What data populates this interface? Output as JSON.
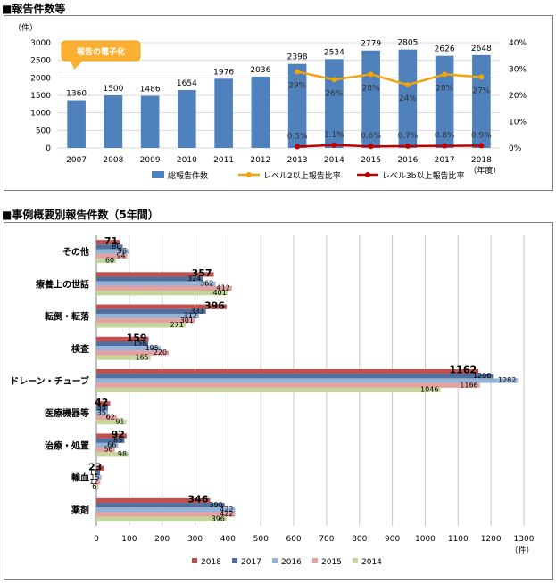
{
  "section1": {
    "title": "■報告件数等"
  },
  "section2": {
    "title": "■事例概要別報告件数（5年間）"
  },
  "chart_data": [
    {
      "type": "bar",
      "categories": [
        "2007",
        "2008",
        "2009",
        "2010",
        "2011",
        "2012",
        "2013",
        "2014",
        "2015",
        "2016",
        "2017",
        "2018"
      ],
      "x_unit": "（年度）",
      "y_unit": "（件）",
      "ylim": [
        0,
        3000
      ],
      "yticks": [
        0,
        500,
        1000,
        1500,
        2000,
        2500,
        3000
      ],
      "y2lim": [
        0,
        40
      ],
      "y2ticks": [
        "0%",
        "10%",
        "20%",
        "30%",
        "40%"
      ],
      "annotation": "報告の電子化",
      "series": [
        {
          "name": "総報告件数",
          "kind": "bar",
          "color": "#4f81bd",
          "values": [
            1360,
            1500,
            1486,
            1654,
            1976,
            2036,
            2398,
            2534,
            2779,
            2805,
            2626,
            2648
          ]
        },
        {
          "name": "レベル2以上報告比率",
          "kind": "line",
          "axis": "right",
          "color": "#f0a30a",
          "values": [
            null,
            null,
            null,
            null,
            null,
            null,
            29,
            26,
            28,
            24,
            28,
            27
          ],
          "labels": [
            "",
            "",
            "",
            "",
            "",
            "",
            "29%",
            "26%",
            "28%",
            "24%",
            "28%",
            "27%"
          ]
        },
        {
          "name": "レベル3b以上報告比率",
          "kind": "line",
          "axis": "right",
          "color": "#c00000",
          "values": [
            null,
            null,
            null,
            null,
            null,
            null,
            0.5,
            1.1,
            0.6,
            0.7,
            0.8,
            0.9
          ],
          "labels": [
            "",
            "",
            "",
            "",
            "",
            "",
            "0.5%",
            "1.1%",
            "0.6%",
            "0.7%",
            "0.8%",
            "0.9%"
          ]
        }
      ],
      "grid": "horizontal",
      "legend": "bottom"
    },
    {
      "type": "bar",
      "orientation": "horizontal",
      "categories": [
        "その他",
        "療養上の世話",
        "転倒・転落",
        "検査",
        "ドレーン・チューブ",
        "医療機器等",
        "治療・処置",
        "輸血",
        "薬剤"
      ],
      "xlim": [
        0,
        1300
      ],
      "xticks": [
        0,
        100,
        200,
        300,
        400,
        500,
        600,
        700,
        800,
        900,
        1000,
        1100,
        1200,
        1300
      ],
      "x_unit": "（件）",
      "series": [
        {
          "name": "2018",
          "color": "#c0504d",
          "values": [
            71,
            357,
            396,
            159,
            1162,
            42,
            92,
            23,
            346
          ]
        },
        {
          "name": "2017",
          "color": "#4f6fa0",
          "values": [
            80,
            324,
            333,
            158,
            1206,
            35,
            85,
            11,
            390
          ]
        },
        {
          "name": "2016",
          "color": "#95b3d7",
          "values": [
            98,
            362,
            312,
            195,
            1282,
            35,
            66,
            15,
            422
          ]
        },
        {
          "name": "2015",
          "color": "#e6a0a0",
          "values": [
            94,
            412,
            301,
            220,
            1166,
            62,
            56,
            12,
            422
          ]
        },
        {
          "name": "2014",
          "color": "#c4d79b",
          "values": [
            60,
            401,
            271,
            165,
            1046,
            91,
            98,
            6,
            396
          ]
        }
      ],
      "grid": "vertical",
      "legend": "bottom"
    }
  ]
}
